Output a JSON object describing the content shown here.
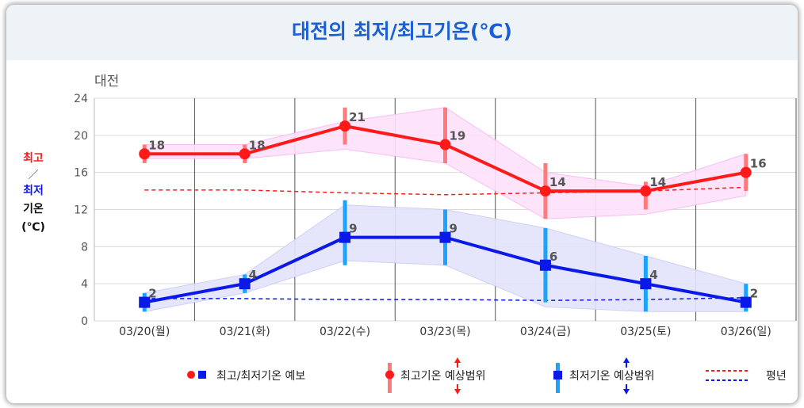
{
  "title": "대전의 최저/최고기온(℃)",
  "chart_data": {
    "type": "line",
    "region_label": "대전",
    "categories": [
      "03/20(월)",
      "03/21(화)",
      "03/22(수)",
      "03/23(목)",
      "03/24(금)",
      "03/25(토)",
      "03/26(일)"
    ],
    "ylim": [
      0,
      24
    ],
    "yticks": [
      0,
      4,
      8,
      12,
      16,
      20,
      24
    ],
    "ylabel": {
      "max": "최고",
      "sep": "／",
      "min": "최저",
      "word": "기온",
      "unit": "(℃)"
    },
    "series": [
      {
        "name": "최고기온",
        "color": "#ff1a1a",
        "values": [
          18,
          18,
          21,
          19,
          14,
          14,
          16
        ],
        "range_low": [
          17,
          17,
          19,
          17,
          11,
          12,
          14
        ],
        "range_high": [
          19,
          19,
          23,
          23,
          17,
          15,
          18
        ],
        "band_low": [
          17.5,
          17.5,
          18.5,
          17,
          11,
          11.5,
          13.5
        ],
        "band_high": [
          19,
          19,
          21.5,
          23,
          16,
          14.5,
          18
        ],
        "normal": [
          14.1,
          14.1,
          13.8,
          13.6,
          13.8,
          14,
          14.4
        ]
      },
      {
        "name": "최저기온",
        "color": "#0a18e8",
        "values": [
          2,
          4,
          9,
          9,
          6,
          4,
          2
        ],
        "range_low": [
          1,
          3,
          6,
          6,
          2,
          1,
          1
        ],
        "range_high": [
          3,
          5,
          13,
          12,
          10,
          7,
          4
        ],
        "band_low": [
          1,
          3,
          6.5,
          6,
          1.5,
          1,
          1
        ],
        "band_high": [
          3,
          5,
          12.5,
          12,
          10,
          7,
          4
        ],
        "normal": [
          2.4,
          2.4,
          2.3,
          2.3,
          2.2,
          2.3,
          2.5
        ]
      }
    ],
    "legend": {
      "forecast": "최고/최저기온 예보",
      "max_range": "최고기온 예상범위",
      "min_range": "최저기온 예상범위",
      "normal": "평년"
    }
  }
}
